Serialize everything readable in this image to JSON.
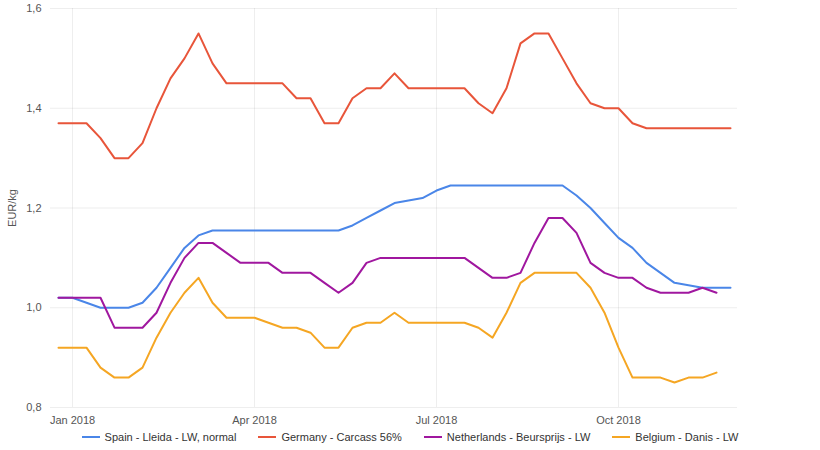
{
  "chart_data": {
    "type": "line",
    "y_label": "EUR/kg",
    "categories": [
      null,
      "Jan 2018",
      null,
      null,
      null,
      null,
      null,
      null,
      null,
      null,
      null,
      null,
      null,
      null,
      "Apr 2018",
      null,
      null,
      null,
      null,
      null,
      null,
      null,
      null,
      null,
      null,
      null,
      null,
      "Jul 2018",
      null,
      null,
      null,
      null,
      null,
      null,
      null,
      null,
      null,
      null,
      null,
      null,
      "Oct 2018",
      null,
      null,
      null,
      null,
      null,
      null,
      null,
      null
    ],
    "series": [
      {
        "name": "Spain - Lleida - LW, normal",
        "color": "#4a86e8",
        "values": [
          1.02,
          1.02,
          1.01,
          1.0,
          1.0,
          1.0,
          1.01,
          1.04,
          1.08,
          1.12,
          1.145,
          1.155,
          1.155,
          1.155,
          1.155,
          1.155,
          1.155,
          1.155,
          1.155,
          1.155,
          1.155,
          1.165,
          1.18,
          1.195,
          1.21,
          1.215,
          1.22,
          1.235,
          1.245,
          1.245,
          1.245,
          1.245,
          1.245,
          1.245,
          1.245,
          1.245,
          1.245,
          1.225,
          1.2,
          1.17,
          1.14,
          1.12,
          1.09,
          1.07,
          1.05,
          1.045,
          1.04,
          1.04,
          1.04
        ]
      },
      {
        "name": "Germany - Carcass 56%",
        "color": "#e8553a",
        "values": [
          1.37,
          1.37,
          1.37,
          1.34,
          1.3,
          1.3,
          1.33,
          1.4,
          1.46,
          1.5,
          1.55,
          1.49,
          1.45,
          1.45,
          1.45,
          1.45,
          1.45,
          1.42,
          1.42,
          1.37,
          1.37,
          1.42,
          1.44,
          1.44,
          1.47,
          1.44,
          1.44,
          1.44,
          1.44,
          1.44,
          1.41,
          1.39,
          1.44,
          1.53,
          1.55,
          1.55,
          1.5,
          1.45,
          1.41,
          1.4,
          1.4,
          1.37,
          1.36,
          1.36,
          1.36,
          1.36,
          1.36,
          1.36,
          1.36
        ]
      },
      {
        "name": "Netherlands - Beursprijs - LW",
        "color": "#a0179f",
        "values": [
          1.02,
          1.02,
          1.02,
          1.02,
          0.96,
          0.96,
          0.96,
          0.99,
          1.05,
          1.1,
          1.13,
          1.13,
          1.11,
          1.09,
          1.09,
          1.09,
          1.07,
          1.07,
          1.07,
          1.05,
          1.03,
          1.05,
          1.09,
          1.1,
          1.1,
          1.1,
          1.1,
          1.1,
          1.1,
          1.1,
          1.08,
          1.06,
          1.06,
          1.07,
          1.13,
          1.18,
          1.18,
          1.15,
          1.09,
          1.07,
          1.06,
          1.06,
          1.04,
          1.03,
          1.03,
          1.03,
          1.04,
          1.03,
          null
        ]
      },
      {
        "name": "Belgium - Danis - LW",
        "color": "#f5a623",
        "values": [
          0.92,
          0.92,
          0.92,
          0.88,
          0.86,
          0.86,
          0.88,
          0.94,
          0.99,
          1.03,
          1.06,
          1.01,
          0.98,
          0.98,
          0.98,
          0.97,
          0.96,
          0.96,
          0.95,
          0.92,
          0.92,
          0.96,
          0.97,
          0.97,
          0.99,
          0.97,
          0.97,
          0.97,
          0.97,
          0.97,
          0.96,
          0.94,
          0.99,
          1.05,
          1.07,
          1.07,
          1.07,
          1.07,
          1.04,
          0.99,
          0.92,
          0.86,
          0.86,
          0.86,
          0.85,
          0.86,
          0.86,
          0.87,
          null
        ]
      }
    ],
    "ylim": [
      0.8,
      1.6
    ],
    "yticks": [
      {
        "value": 0.8,
        "label": "0,8"
      },
      {
        "value": 1.0,
        "label": "1,0"
      },
      {
        "value": 1.2,
        "label": "1,2"
      },
      {
        "value": 1.4,
        "label": "1,4"
      },
      {
        "value": 1.6,
        "label": "1,6"
      }
    ],
    "grid": true,
    "legend": "bottom"
  }
}
